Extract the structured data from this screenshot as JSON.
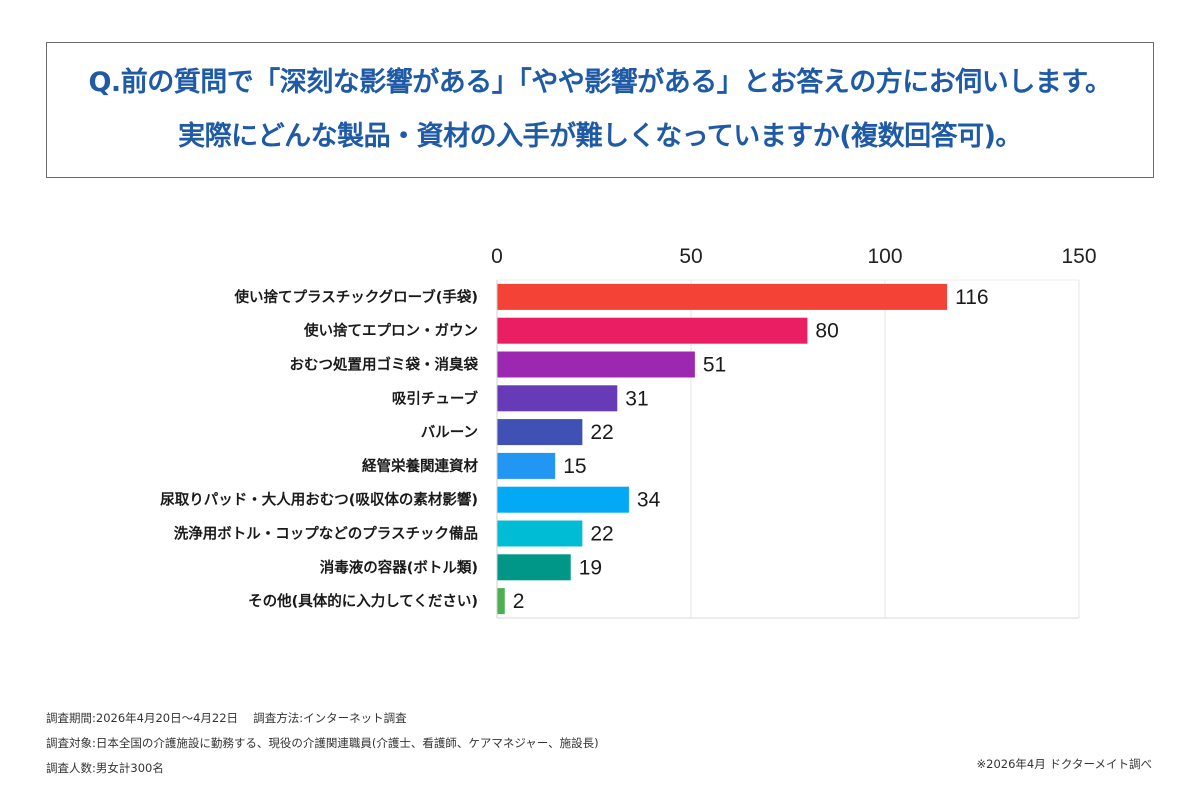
{
  "title": {
    "line1": "Q.前の質問で「深刻な影響がある」「やや影響がある」とお答えの方にお伺いします。",
    "line2": "実際にどんな製品・資材の入手が難しくなっていますか(複数回答可)。"
  },
  "chart_data": {
    "type": "bar",
    "orientation": "horizontal",
    "xlim": [
      0,
      150
    ],
    "x_ticks": [
      "0",
      "50",
      "100",
      "150"
    ],
    "grid": true,
    "categories": [
      "使い捨てプラスチックグローブ(手袋)",
      "使い捨てエプロン・ガウン",
      "おむつ処置用ゴミ袋・消臭袋",
      "吸引チューブ",
      "バルーン",
      "経管栄養関連資材",
      "尿取りパッド・大人用おむつ(吸収体の素材影響)",
      "洗浄用ボトル・コップなどのプラスチック備品",
      "消毒液の容器(ボトル類)",
      "その他(具体的に入力してください)"
    ],
    "values": [
      116,
      80,
      51,
      31,
      22,
      15,
      34,
      22,
      19,
      2
    ],
    "colors": [
      "#f44336",
      "#e91e63",
      "#9c27b0",
      "#673ab7",
      "#3f51b5",
      "#2196f3",
      "#03a9f4",
      "#00bcd4",
      "#009688",
      "#4caf50"
    ]
  },
  "footer": {
    "line1": "調査期間:2026年4月20日〜4月22日　 調査方法:インターネット調査",
    "line2": "調査対象:日本全国の介護施設に勤務する、現役の介護関連職員(介護士、看護師、ケアマネジャー、施設長)",
    "line3": "調査人数:男女計300名",
    "source": "※2026年4月 ドクターメイト調べ"
  }
}
